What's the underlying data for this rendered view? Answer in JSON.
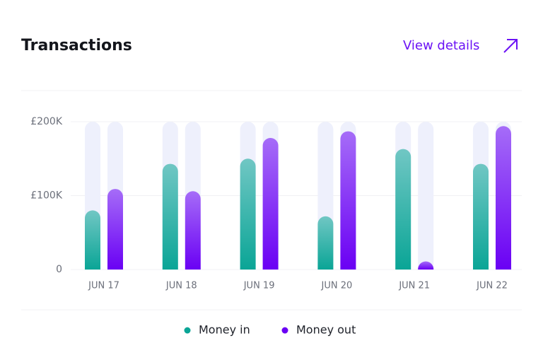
{
  "header": {
    "title": "Transactions",
    "link": "View details"
  },
  "chart_data": {
    "type": "bar",
    "categories": [
      "JUN 17",
      "JUN 18",
      "JUN 19",
      "JUN 20",
      "JUN 21",
      "JUN 22"
    ],
    "series": [
      {
        "name": "Money in",
        "color": "#0aa596",
        "values": [
          80000,
          143000,
          150000,
          72000,
          163000,
          143000
        ]
      },
      {
        "name": "Money out",
        "color": "#6a00f4",
        "values": [
          109000,
          106000,
          178000,
          187000,
          11000,
          194000
        ]
      }
    ],
    "ylim": [
      0,
      200000
    ],
    "yticks": [
      0,
      {
        "value": 100000,
        "label": "£100K"
      },
      {
        "value": 200000,
        "label": "£200K"
      }
    ],
    "grid": true
  }
}
